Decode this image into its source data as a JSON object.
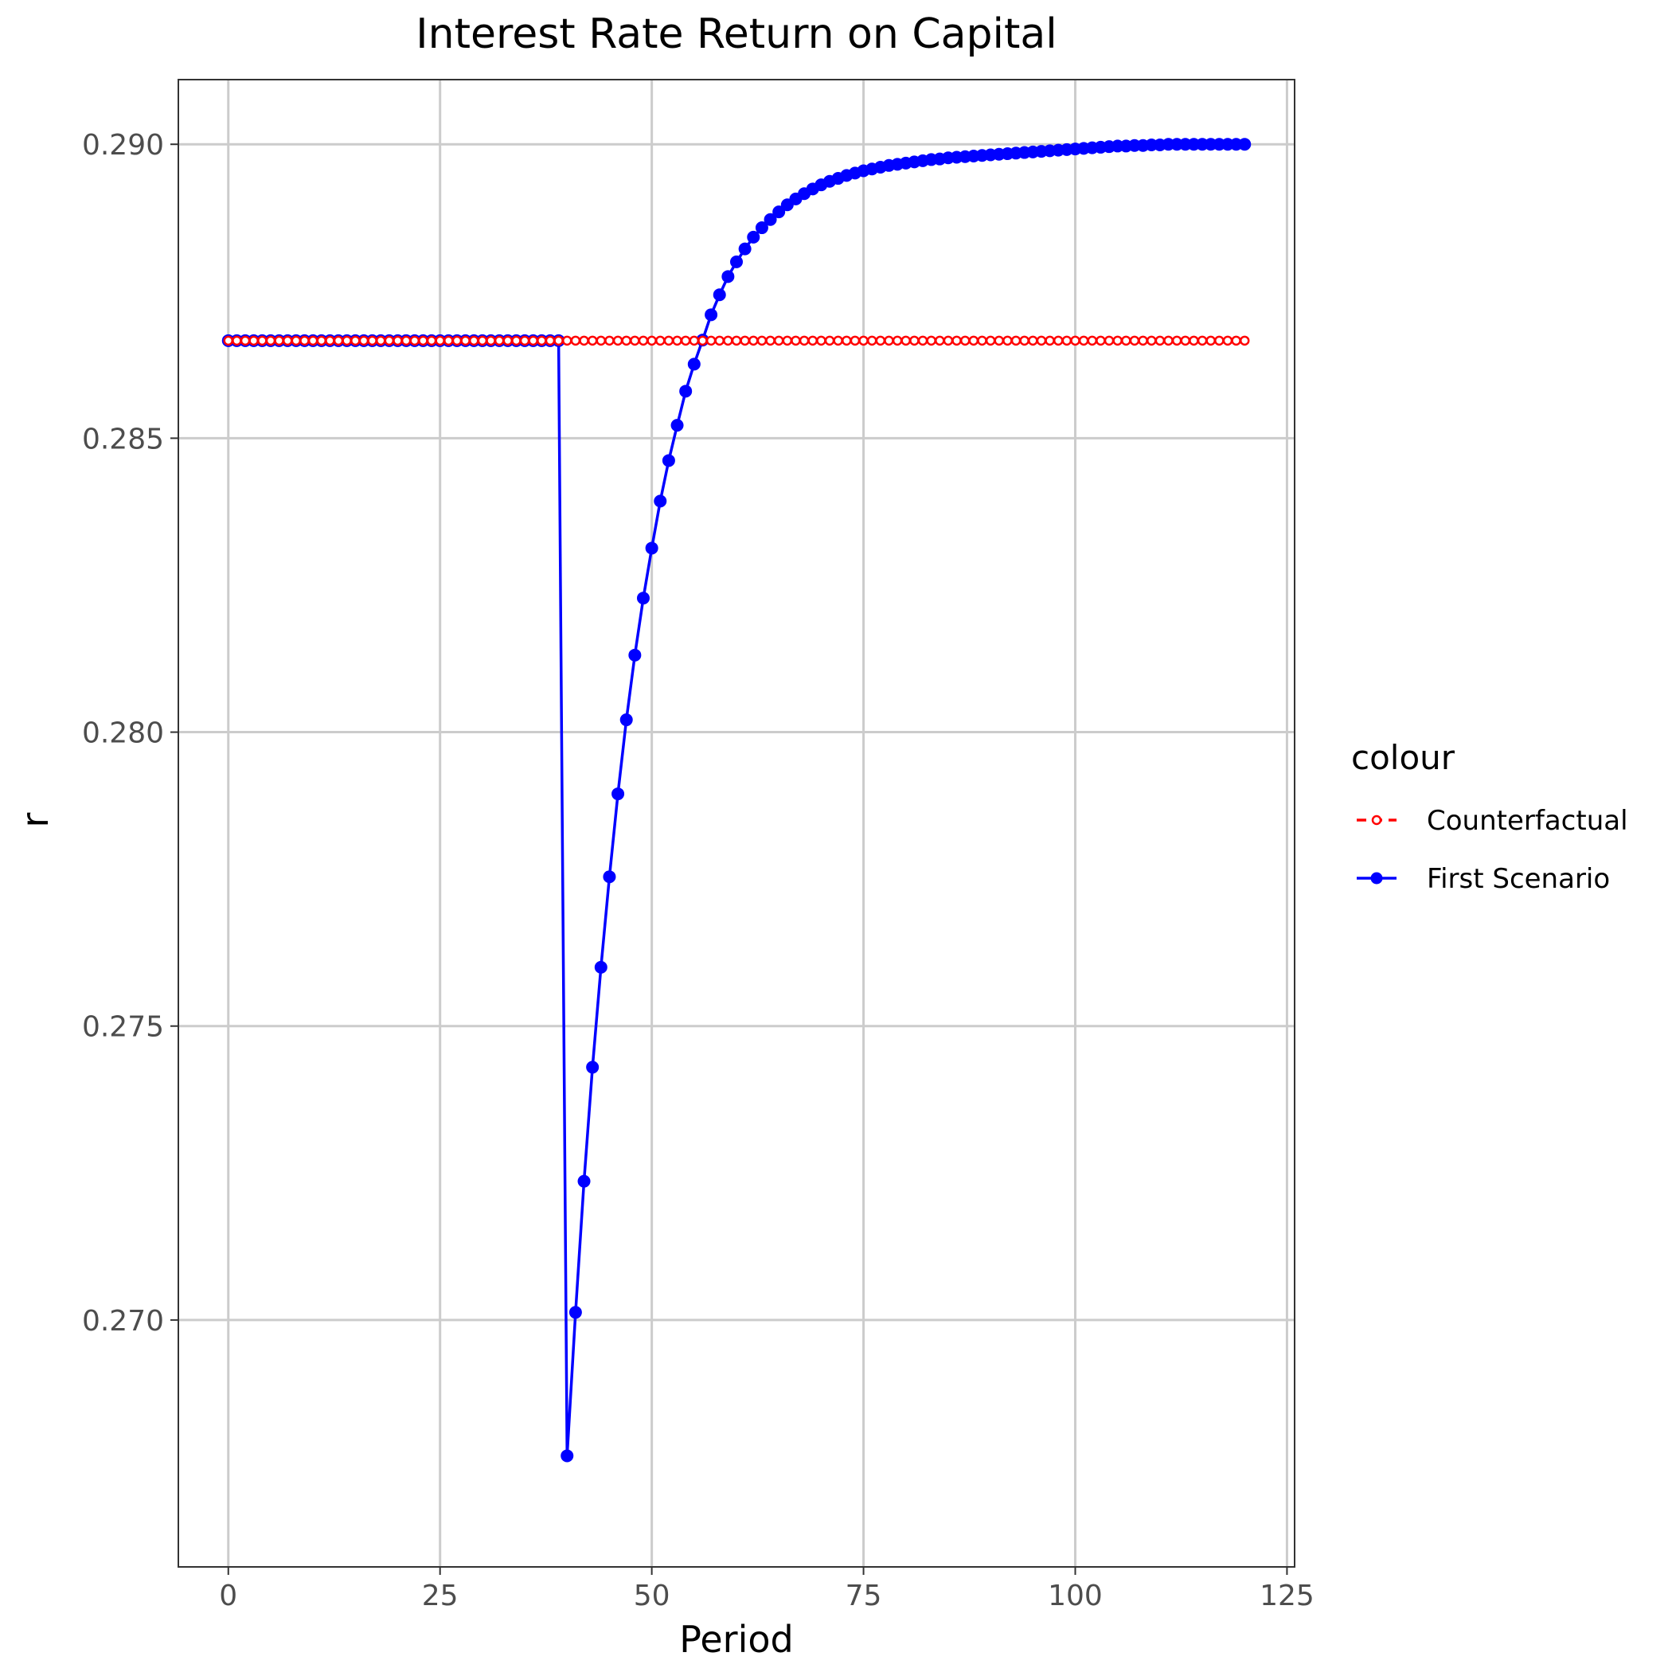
{
  "chart_data": {
    "type": "line",
    "title": "Interest Rate Return on Capital",
    "xlabel": "Period",
    "ylabel": "r",
    "xlim": [
      -5.9,
      125.9
    ],
    "ylim": [
      0.2658,
      0.2911
    ],
    "x_ticks": [
      0,
      25,
      50,
      75,
      100,
      125
    ],
    "y_ticks": [
      0.27,
      0.275,
      0.28,
      0.285,
      0.29
    ],
    "x_tick_labels": [
      "0",
      "25",
      "50",
      "75",
      "100",
      "125"
    ],
    "y_tick_labels": [
      "0.270",
      "0.275",
      "0.280",
      "0.285",
      "0.290"
    ],
    "grid": true,
    "legend": {
      "title": "colour",
      "placement": "right"
    },
    "x_range": {
      "start": 0,
      "end": 120,
      "step": 1
    },
    "series": [
      {
        "name": "Counterfactual",
        "color": "#ff0000",
        "marker": "open-circle",
        "line": "dashed",
        "constant_value": 0.28666
      },
      {
        "name": "First Scenario",
        "color": "#0000ff",
        "marker": "filled-circle",
        "line": "solid",
        "pre_shock_value": 0.28666,
        "shock_period": 40,
        "post_shock_values": [
          0.26769,
          0.27013,
          0.27236,
          0.2743,
          0.276,
          0.27754,
          0.27895,
          0.28021,
          0.28131,
          0.28228,
          0.28313,
          0.28393,
          0.28462,
          0.28522,
          0.2858,
          0.28626,
          0.28667,
          0.2871,
          0.28744,
          0.28775,
          0.288,
          0.28822,
          0.28842,
          0.28858,
          0.28872,
          0.28885,
          0.28897,
          0.28907,
          0.28916,
          0.28924,
          0.28931,
          0.28937,
          0.28942,
          0.28947,
          0.28951,
          0.28955,
          0.28958,
          0.28961,
          0.28964,
          0.28966,
          0.28968,
          0.2897,
          0.28972,
          0.28974,
          0.28975,
          0.28977,
          0.28978,
          0.28979,
          0.2898,
          0.28981,
          0.28982,
          0.28983,
          0.28984,
          0.28985,
          0.28986,
          0.28987,
          0.28988,
          0.28989,
          0.2899,
          0.28991,
          0.28992,
          0.28993,
          0.28994,
          0.28995,
          0.28996,
          0.28997,
          0.28997,
          0.28998,
          0.28998,
          0.28999,
          0.28999,
          0.29,
          0.29,
          0.29,
          0.29,
          0.29,
          0.29,
          0.29,
          0.29,
          0.29,
          0.29
        ]
      }
    ]
  }
}
